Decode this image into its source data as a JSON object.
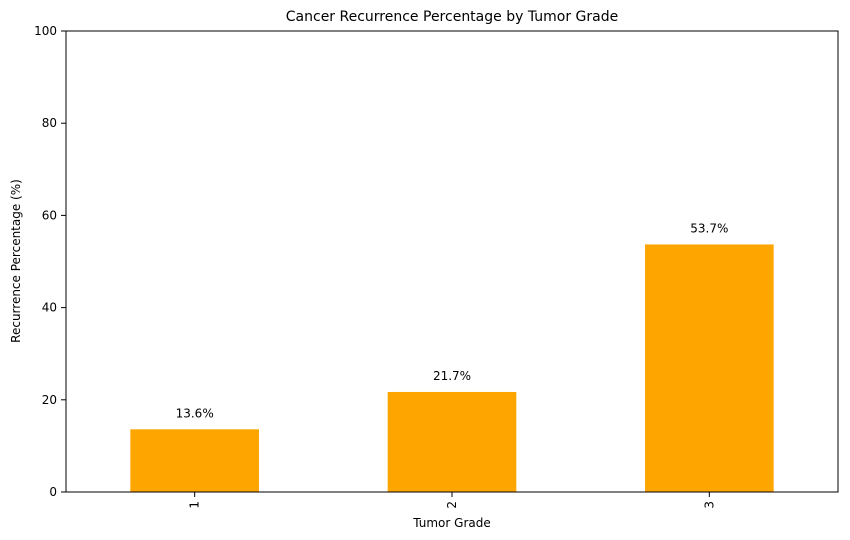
{
  "chart_data": {
    "type": "bar",
    "title": "Cancer Recurrence Percentage by Tumor Grade",
    "xlabel": "Tumor Grade",
    "ylabel": "Recurrence Percentage (%)",
    "categories": [
      "1",
      "2",
      "3"
    ],
    "values": [
      13.6,
      21.7,
      53.7
    ],
    "data_labels": [
      "13.6%",
      "21.7%",
      "53.7%"
    ],
    "ylim": [
      0,
      100
    ],
    "yticks": [
      0,
      20,
      40,
      60,
      80,
      100
    ],
    "ytick_labels": [
      "0",
      "20",
      "40",
      "60",
      "80",
      "100"
    ],
    "bar_color": "#FFA500",
    "grid": false,
    "legend": "none"
  }
}
